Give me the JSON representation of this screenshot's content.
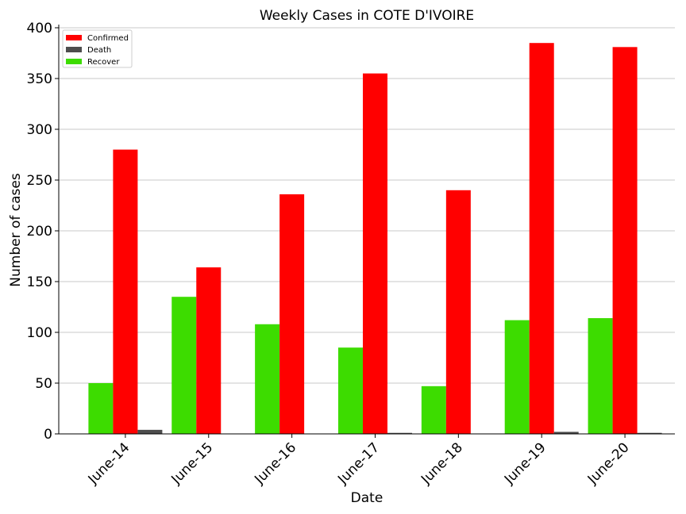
{
  "chart_data": {
    "type": "bar",
    "title": "Weekly Cases in COTE D'IVOIRE",
    "xlabel": "Date",
    "ylabel": "Number of cases",
    "categories": [
      "June-14",
      "June-15",
      "June-16",
      "June-17",
      "June-18",
      "June-19",
      "June-20"
    ],
    "series": [
      {
        "name": "Recover",
        "color": "#3ddc00",
        "values": [
          50,
          135,
          108,
          85,
          47,
          112,
          114
        ]
      },
      {
        "name": "Confirmed",
        "color": "#ff0000",
        "values": [
          280,
          164,
          236,
          355,
          240,
          385,
          381
        ]
      },
      {
        "name": "Death",
        "color": "#4d4d4d",
        "values": [
          4,
          0,
          0,
          1,
          0,
          2,
          1
        ]
      }
    ],
    "legend_order": [
      "Confirmed",
      "Death",
      "Recover"
    ],
    "legend_position": "top-left",
    "ylim": [
      0,
      400
    ],
    "yticks": [
      0,
      50,
      100,
      150,
      200,
      250,
      300,
      350,
      400
    ],
    "grid": "horizontal",
    "xtick_rotation": 45
  }
}
